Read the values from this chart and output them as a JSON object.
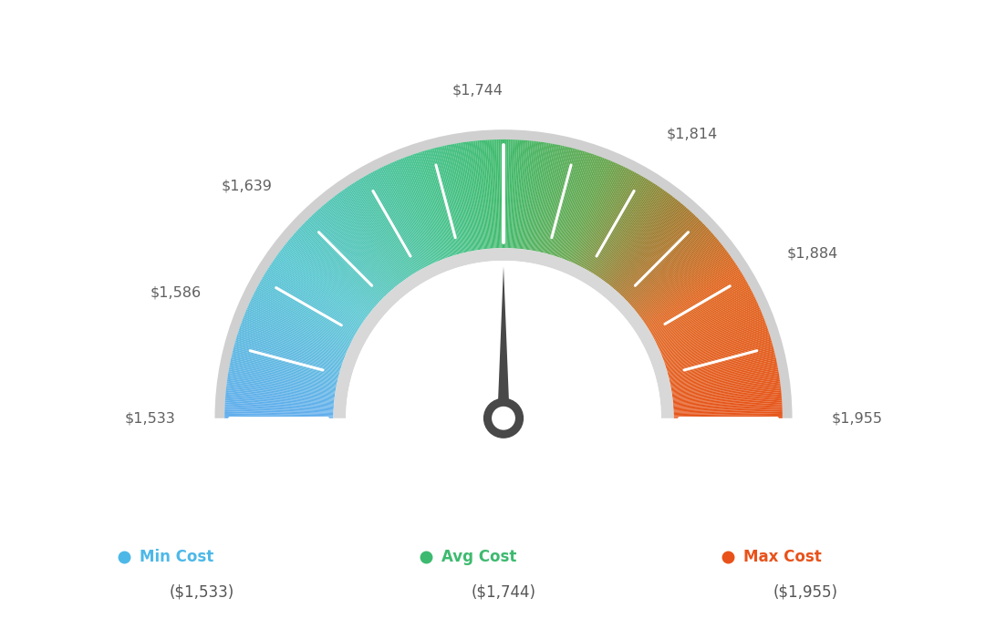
{
  "min_val": 1533,
  "max_val": 1955,
  "avg_val": 1744,
  "tick_values": [
    1533,
    1586,
    1639,
    1744,
    1814,
    1884,
    1955
  ],
  "all_tick_values": [
    1533,
    1568,
    1603,
    1639,
    1674,
    1709,
    1744,
    1779,
    1814,
    1849,
    1884,
    1920,
    1955
  ],
  "label_values": [
    1533,
    1586,
    1639,
    1744,
    1814,
    1884,
    1955
  ],
  "label_texts": [
    "$1,533",
    "$1,586",
    "$1,639",
    "$1,744",
    "$1,814",
    "$1,884",
    "$1,955"
  ],
  "color_stops": [
    [
      0.0,
      [
        0.38,
        0.68,
        0.93
      ]
    ],
    [
      0.2,
      [
        0.35,
        0.78,
        0.82
      ]
    ],
    [
      0.4,
      [
        0.27,
        0.76,
        0.55
      ]
    ],
    [
      0.5,
      [
        0.25,
        0.73,
        0.42
      ]
    ],
    [
      0.62,
      [
        0.4,
        0.65,
        0.3
      ]
    ],
    [
      0.72,
      [
        0.62,
        0.48,
        0.18
      ]
    ],
    [
      0.82,
      [
        0.88,
        0.4,
        0.12
      ]
    ],
    [
      1.0,
      [
        0.9,
        0.33,
        0.1
      ]
    ]
  ],
  "legend": [
    {
      "label": "Min Cost",
      "value": "($1,533)",
      "color": "#4db8e8"
    },
    {
      "label": "Avg Cost",
      "value": "($1,744)",
      "color": "#3dba6f"
    },
    {
      "label": "Max Cost",
      "value": "($1,955)",
      "color": "#e8521a"
    }
  ],
  "outer_border_color": "#d0d0d0",
  "inner_ring_color": "#d8d8d8",
  "needle_color": "#484848",
  "background_color": "#ffffff"
}
